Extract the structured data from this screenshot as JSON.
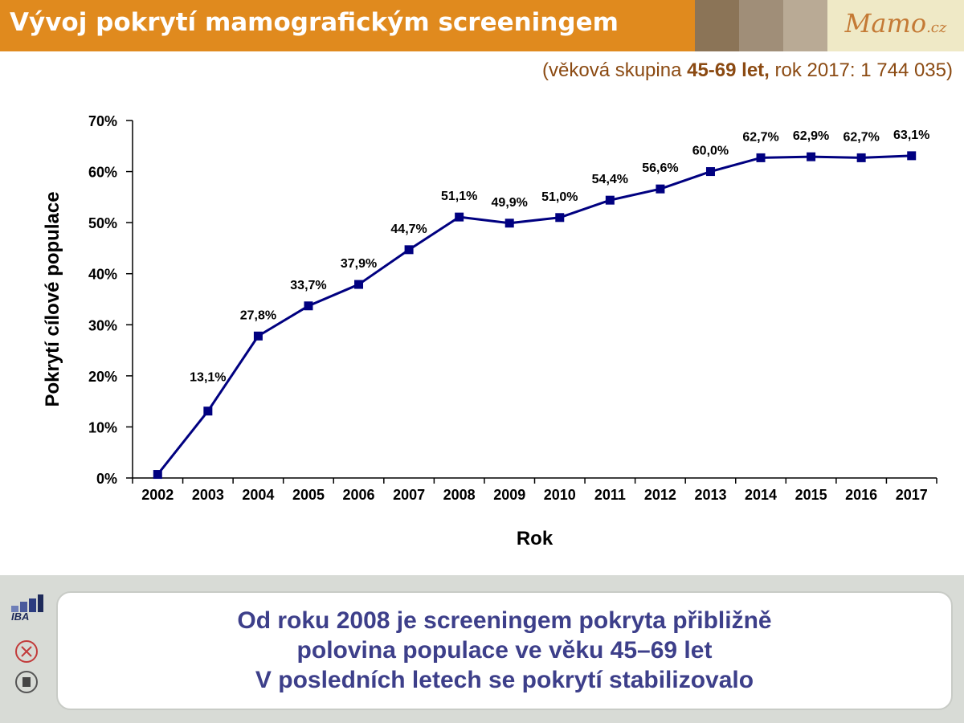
{
  "header": {
    "title": "Vývoj pokrytí mamografickým screeningem",
    "logo_text": "Mamo",
    "logo_suffix": ".cz",
    "colors": {
      "title_bar": "#e08a1e",
      "block1": "#8b7457",
      "block2": "#a08e78",
      "block3": "#b9aa95",
      "block4": "#cdbfae",
      "logo_bg": "#efe9c6"
    }
  },
  "subtitle": {
    "prefix": "(věková skupina ",
    "age_group": "45-69 let,",
    "suffix": " rok 2017: 1 744 035)"
  },
  "chart_data": {
    "type": "line",
    "ylabel": "Pokrytí cílové populace",
    "xlabel": "Rok",
    "ylim": [
      0,
      70
    ],
    "yticks": [
      "0%",
      "10%",
      "20%",
      "30%",
      "40%",
      "50%",
      "60%",
      "70%"
    ],
    "categories": [
      "2002",
      "2003",
      "2004",
      "2005",
      "2006",
      "2007",
      "2008",
      "2009",
      "2010",
      "2011",
      "2012",
      "2013",
      "2014",
      "2015",
      "2016",
      "2017"
    ],
    "series": [
      {
        "values": [
          0.7,
          13.1,
          27.8,
          33.7,
          37.9,
          44.7,
          51.1,
          49.9,
          51.0,
          54.4,
          56.6,
          60.0,
          62.7,
          62.9,
          62.7,
          63.1
        ],
        "labels": [
          "",
          "13,1%",
          "27,8%",
          "33,7%",
          "37,9%",
          "44,7%",
          "51,1%",
          "49,9%",
          "51,0%",
          "54,4%",
          "56,6%",
          "60,0%",
          "62,7%",
          "62,9%",
          "62,7%",
          "63,1%"
        ],
        "color": "#000080"
      }
    ],
    "grid": false,
    "legend": "none"
  },
  "footer": {
    "iba_label": "IBA",
    "lines": [
      "Od roku 2008 je screeningem pokryta přibližně",
      "polovina populace ve věku 45–69 let",
      "V posledních letech se pokrytí stabilizovalo"
    ],
    "text_color": "#3d3f8a"
  }
}
